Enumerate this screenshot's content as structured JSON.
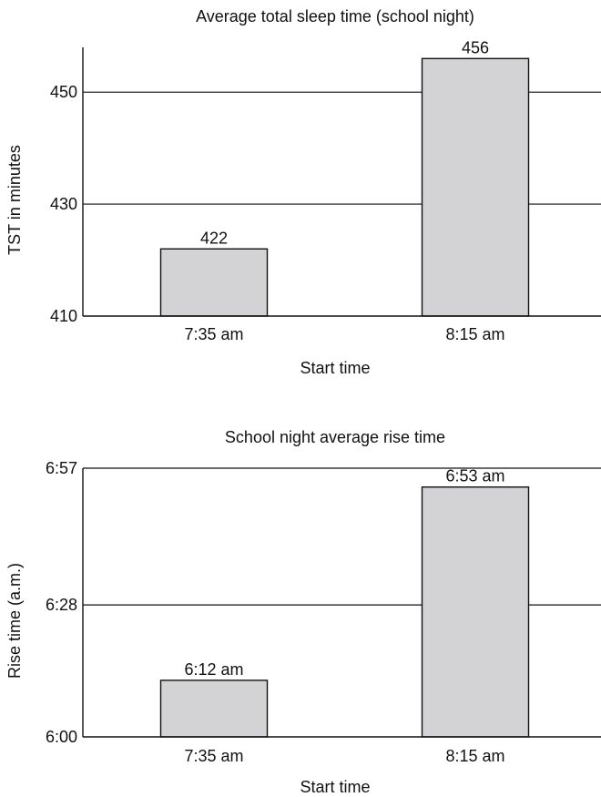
{
  "chart_data": [
    {
      "type": "bar",
      "title": "Average total sleep time (school night)",
      "xlabel": "Start time",
      "ylabel": "TST in minutes",
      "categories": [
        "7:35 am",
        "8:15 am"
      ],
      "values": [
        422,
        456
      ],
      "value_labels": [
        "422",
        "456"
      ],
      "ylim": [
        410,
        458
      ],
      "yticks": [
        410,
        430,
        450
      ],
      "ytick_labels": [
        "410",
        "430",
        "450"
      ],
      "grid": true,
      "bar_color": "#d3d3d5"
    },
    {
      "type": "bar",
      "title": "School night average rise time",
      "xlabel": "Start time",
      "ylabel": "Rise time (a.m.)",
      "categories": [
        "7:35 am",
        "8:15 am"
      ],
      "values": [
        12,
        53
      ],
      "value_labels": [
        "6:12 am",
        "6:53 am"
      ],
      "ylim": [
        0,
        57
      ],
      "yticks": [
        0,
        28,
        57
      ],
      "ytick_labels": [
        "6:00",
        "6:28",
        "6:57"
      ],
      "grid": true,
      "bar_color": "#d3d3d5"
    }
  ]
}
